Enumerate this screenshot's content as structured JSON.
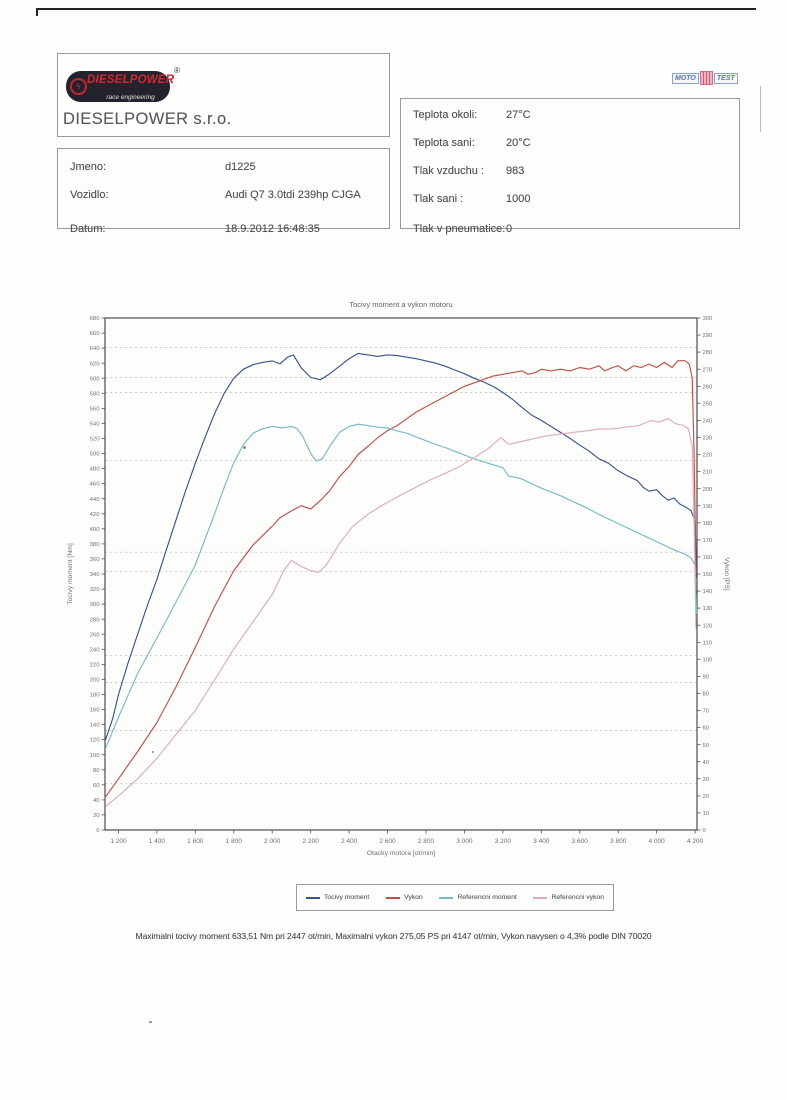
{
  "header": {
    "logo": {
      "brand": "DIESELPOWER",
      "sub": "race engineering",
      "registered": "®",
      "emblem": "dieselpower-emblem-icon",
      "company": "DIESELPOWER s.r.o."
    },
    "mototest": {
      "left": "MOTO",
      "right": "TEST"
    }
  },
  "info_left": {
    "rows": [
      {
        "label": "Jmeno:",
        "value": "d1225"
      },
      {
        "label": "Vozidlo:",
        "value": "Audi Q7 3.0tdi 239hp CJGA"
      },
      {
        "label": "Datum:",
        "value": "18.9.2012 16:48:35"
      }
    ]
  },
  "info_right": {
    "rows": [
      {
        "label": "Teplota okoli:",
        "value": "27°C"
      },
      {
        "label": "Teplota sani:",
        "value": "20°C"
      },
      {
        "label": "Tlak vzduchu :",
        "value": "983"
      },
      {
        "label": "Tlak sani :",
        "value": "1000"
      },
      {
        "label": "Tlak v pneumatice:",
        "value": "0"
      }
    ]
  },
  "chart_data": {
    "type": "line",
    "title": "Tocivy moment a vykon motoru",
    "xlabel": "Otacky motora [ot/min]",
    "ylabel_left": "Tocivy moment [Nm]",
    "ylabel_right": "Vykon [PS]",
    "x_range": [
      1130,
      4210
    ],
    "x_ticks": {
      "values": [
        1200,
        1400,
        1600,
        1800,
        2000,
        2200,
        2400,
        2600,
        2800,
        3000,
        3200,
        3400,
        3600,
        3800,
        4000,
        4200
      ],
      "labels": [
        "1 200",
        "1 400",
        "1 600",
        "1 800",
        "2 000",
        "2 200",
        "2 400",
        "2 600",
        "2 800",
        "3 000",
        "3 200",
        "3 400",
        "3 600",
        "3 800",
        "4 000",
        "4 200"
      ]
    },
    "y_left": {
      "min": 0,
      "max": 680,
      "step": 20
    },
    "y_right": {
      "min": 0,
      "max": 300,
      "step": 10
    },
    "grid": "dashed-horizontal",
    "gridlines_left_units": [
      641,
      601,
      581,
      491,
      369,
      343,
      232,
      196,
      132,
      62
    ],
    "legend_position": "bottom",
    "series": [
      {
        "name": "Tocivy moment",
        "axis": "left",
        "unit": "Nm",
        "color": "#39558c",
        "points": [
          [
            1130,
            118
          ],
          [
            1170,
            148
          ],
          [
            1200,
            180
          ],
          [
            1250,
            222
          ],
          [
            1300,
            260
          ],
          [
            1350,
            298
          ],
          [
            1400,
            333
          ],
          [
            1450,
            373
          ],
          [
            1500,
            412
          ],
          [
            1550,
            451
          ],
          [
            1600,
            487
          ],
          [
            1650,
            521
          ],
          [
            1700,
            553
          ],
          [
            1750,
            580
          ],
          [
            1800,
            600
          ],
          [
            1850,
            612
          ],
          [
            1900,
            618
          ],
          [
            1950,
            621
          ],
          [
            2000,
            623
          ],
          [
            2040,
            619
          ],
          [
            2080,
            628
          ],
          [
            2110,
            631
          ],
          [
            2150,
            614
          ],
          [
            2200,
            601
          ],
          [
            2250,
            598
          ],
          [
            2300,
            606
          ],
          [
            2350,
            616
          ],
          [
            2400,
            626
          ],
          [
            2447,
            633
          ],
          [
            2500,
            631
          ],
          [
            2550,
            629
          ],
          [
            2600,
            631
          ],
          [
            2650,
            630
          ],
          [
            2700,
            628
          ],
          [
            2750,
            626
          ],
          [
            2800,
            623
          ],
          [
            2850,
            620
          ],
          [
            2900,
            616
          ],
          [
            2950,
            611
          ],
          [
            3000,
            606
          ],
          [
            3050,
            600
          ],
          [
            3100,
            595
          ],
          [
            3150,
            589
          ],
          [
            3200,
            581
          ],
          [
            3250,
            572
          ],
          [
            3300,
            561
          ],
          [
            3350,
            551
          ],
          [
            3400,
            544
          ],
          [
            3450,
            536
          ],
          [
            3500,
            528
          ],
          [
            3550,
            520
          ],
          [
            3600,
            511
          ],
          [
            3650,
            503
          ],
          [
            3700,
            493
          ],
          [
            3750,
            487
          ],
          [
            3800,
            477
          ],
          [
            3850,
            470
          ],
          [
            3900,
            464
          ],
          [
            3930,
            455
          ],
          [
            3960,
            450
          ],
          [
            4000,
            452
          ],
          [
            4030,
            444
          ],
          [
            4060,
            438
          ],
          [
            4090,
            441
          ],
          [
            4120,
            433
          ],
          [
            4150,
            429
          ],
          [
            4180,
            424
          ],
          [
            4200,
            410
          ],
          [
            4208,
            335
          ]
        ]
      },
      {
        "name": "Vykon",
        "axis": "right",
        "unit": "PS",
        "color": "#c05048",
        "points": [
          [
            1130,
            19
          ],
          [
            1200,
            30
          ],
          [
            1300,
            46
          ],
          [
            1400,
            63
          ],
          [
            1500,
            84
          ],
          [
            1600,
            107
          ],
          [
            1700,
            131
          ],
          [
            1800,
            152
          ],
          [
            1900,
            167
          ],
          [
            2000,
            178
          ],
          [
            2040,
            183
          ],
          [
            2100,
            187
          ],
          [
            2150,
            190
          ],
          [
            2200,
            188
          ],
          [
            2250,
            193
          ],
          [
            2300,
            199
          ],
          [
            2350,
            207
          ],
          [
            2400,
            213
          ],
          [
            2447,
            220
          ],
          [
            2500,
            225
          ],
          [
            2550,
            230
          ],
          [
            2600,
            234
          ],
          [
            2650,
            237
          ],
          [
            2700,
            241
          ],
          [
            2750,
            245
          ],
          [
            2800,
            248
          ],
          [
            2850,
            251
          ],
          [
            2900,
            254
          ],
          [
            2950,
            257
          ],
          [
            3000,
            260
          ],
          [
            3050,
            262
          ],
          [
            3100,
            264
          ],
          [
            3150,
            266
          ],
          [
            3200,
            267
          ],
          [
            3250,
            268
          ],
          [
            3300,
            269
          ],
          [
            3330,
            267
          ],
          [
            3370,
            268
          ],
          [
            3400,
            270
          ],
          [
            3450,
            269
          ],
          [
            3500,
            270
          ],
          [
            3550,
            269
          ],
          [
            3600,
            271
          ],
          [
            3650,
            270
          ],
          [
            3700,
            272
          ],
          [
            3730,
            269
          ],
          [
            3770,
            271
          ],
          [
            3800,
            272
          ],
          [
            3840,
            269
          ],
          [
            3880,
            272
          ],
          [
            3920,
            271
          ],
          [
            3960,
            273
          ],
          [
            4000,
            271
          ],
          [
            4040,
            274
          ],
          [
            4080,
            271
          ],
          [
            4110,
            275
          ],
          [
            4147,
            275
          ],
          [
            4170,
            273
          ],
          [
            4185,
            265
          ],
          [
            4195,
            220
          ],
          [
            4205,
            150
          ]
        ]
      },
      {
        "name": "Referencni moment",
        "axis": "left",
        "unit": "Nm",
        "color": "#76bac6",
        "points": [
          [
            1135,
            110
          ],
          [
            1200,
            150
          ],
          [
            1300,
            208
          ],
          [
            1400,
            255
          ],
          [
            1500,
            303
          ],
          [
            1600,
            352
          ],
          [
            1700,
            420
          ],
          [
            1750,
            455
          ],
          [
            1800,
            488
          ],
          [
            1850,
            512
          ],
          [
            1900,
            527
          ],
          [
            1950,
            533
          ],
          [
            2000,
            536
          ],
          [
            2050,
            534
          ],
          [
            2100,
            536
          ],
          [
            2130,
            533
          ],
          [
            2160,
            522
          ],
          [
            2200,
            500
          ],
          [
            2230,
            490
          ],
          [
            2260,
            493
          ],
          [
            2300,
            510
          ],
          [
            2350,
            528
          ],
          [
            2400,
            536
          ],
          [
            2450,
            539
          ],
          [
            2500,
            537
          ],
          [
            2550,
            535
          ],
          [
            2600,
            534
          ],
          [
            2650,
            530
          ],
          [
            2700,
            527
          ],
          [
            2750,
            522
          ],
          [
            2800,
            517
          ],
          [
            2850,
            512
          ],
          [
            2900,
            508
          ],
          [
            2950,
            503
          ],
          [
            3000,
            498
          ],
          [
            3050,
            493
          ],
          [
            3100,
            489
          ],
          [
            3150,
            485
          ],
          [
            3200,
            481
          ],
          [
            3230,
            470
          ],
          [
            3270,
            468
          ],
          [
            3300,
            466
          ],
          [
            3350,
            460
          ],
          [
            3400,
            454
          ],
          [
            3450,
            449
          ],
          [
            3500,
            444
          ],
          [
            3550,
            438
          ],
          [
            3600,
            432
          ],
          [
            3650,
            426
          ],
          [
            3700,
            419
          ],
          [
            3750,
            413
          ],
          [
            3800,
            407
          ],
          [
            3850,
            401
          ],
          [
            3900,
            395
          ],
          [
            3950,
            389
          ],
          [
            4000,
            383
          ],
          [
            4050,
            377
          ],
          [
            4100,
            371
          ],
          [
            4150,
            366
          ],
          [
            4180,
            361
          ],
          [
            4200,
            352
          ],
          [
            4208,
            288
          ]
        ]
      },
      {
        "name": "Referencni vykon",
        "axis": "right",
        "unit": "PS",
        "color": "#ddabb9",
        "points": [
          [
            1135,
            14
          ],
          [
            1200,
            20
          ],
          [
            1300,
            30
          ],
          [
            1400,
            42
          ],
          [
            1500,
            56
          ],
          [
            1600,
            70
          ],
          [
            1700,
            88
          ],
          [
            1800,
            106
          ],
          [
            1900,
            122
          ],
          [
            2000,
            138
          ],
          [
            2060,
            152
          ],
          [
            2100,
            158
          ],
          [
            2140,
            155
          ],
          [
            2200,
            152
          ],
          [
            2240,
            151
          ],
          [
            2280,
            155
          ],
          [
            2350,
            168
          ],
          [
            2420,
            178
          ],
          [
            2510,
            186
          ],
          [
            2600,
            192
          ],
          [
            2665,
            196
          ],
          [
            2750,
            201
          ],
          [
            2820,
            205
          ],
          [
            2900,
            209
          ],
          [
            2975,
            213
          ],
          [
            3050,
            218
          ],
          [
            3130,
            224
          ],
          [
            3190,
            230
          ],
          [
            3230,
            226
          ],
          [
            3270,
            227
          ],
          [
            3350,
            229
          ],
          [
            3430,
            231
          ],
          [
            3500,
            232
          ],
          [
            3570,
            233
          ],
          [
            3650,
            234
          ],
          [
            3700,
            235
          ],
          [
            3770,
            235
          ],
          [
            3840,
            236
          ],
          [
            3910,
            237
          ],
          [
            3970,
            240
          ],
          [
            4010,
            239
          ],
          [
            4060,
            241
          ],
          [
            4100,
            238
          ],
          [
            4140,
            237
          ],
          [
            4165,
            235
          ],
          [
            4185,
            225
          ],
          [
            4195,
            180
          ],
          [
            4205,
            118
          ]
        ]
      }
    ],
    "annotations": {
      "max_torque": "633,51 Nm pri 2447 ot/min",
      "max_power": "275,05 PS pri 4147 ot/min"
    }
  },
  "summary": "Maximalni tocivy moment 633,51 Nm pri 2447 ot/min,  Maximalni vykon 275,05 PS pri 4147 ot/min,  Vykon navysen o 4,3% podle DIN 70020"
}
